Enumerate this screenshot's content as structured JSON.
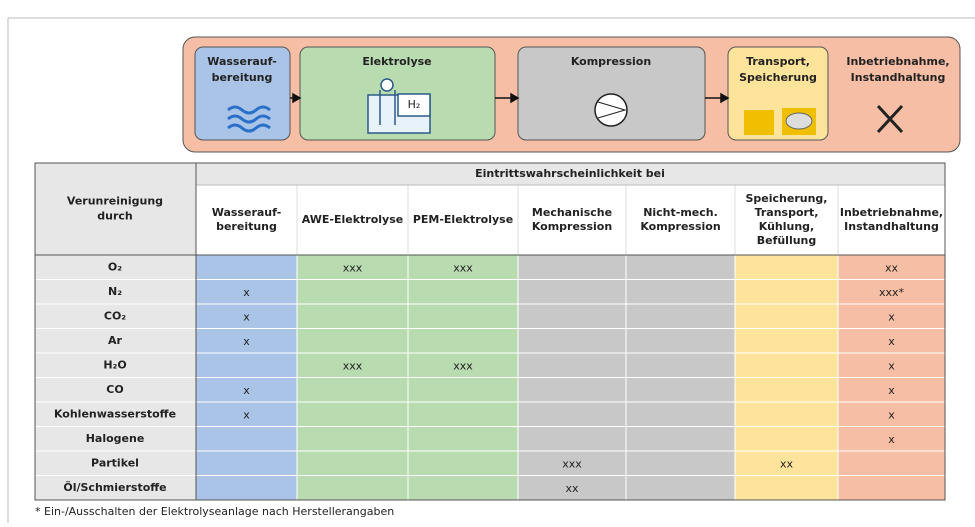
{
  "process": [
    {
      "label": [
        "Wasserauf-",
        "bereitung"
      ]
    },
    {
      "label": [
        "Elektrolyse"
      ],
      "icon_text": "H₂"
    },
    {
      "label": [
        "Kompression"
      ]
    },
    {
      "label": [
        "Transport,",
        "Speicherung"
      ]
    },
    {
      "label": [
        "Inbetriebnahme,",
        "Instandhaltung"
      ]
    }
  ],
  "table": {
    "corner": [
      "Verunreinigung",
      "durch"
    ],
    "group_header": "Eintrittswahrscheinlichkeit bei",
    "columns": [
      [
        "Wasserauf-",
        "bereitung"
      ],
      [
        "AWE-Elektrolyse"
      ],
      [
        "PEM-Elektrolyse"
      ],
      [
        "Mechanische",
        "Kompression"
      ],
      [
        "Nicht-mech.",
        "Kompression"
      ],
      [
        "Speicherung,",
        "Transport,",
        "Kühlung,",
        "Befüllung"
      ],
      [
        "Inbetriebnahme,",
        "Instandhaltung"
      ]
    ],
    "rows": [
      {
        "label": "O₂",
        "cells": [
          null,
          "xxx",
          "xxx",
          null,
          null,
          null,
          "xx"
        ]
      },
      {
        "label": "N₂",
        "cells": [
          "x",
          null,
          null,
          null,
          null,
          null,
          "xxx*"
        ]
      },
      {
        "label": "CO₂",
        "cells": [
          "x",
          null,
          null,
          null,
          null,
          null,
          "x"
        ]
      },
      {
        "label": "Ar",
        "cells": [
          "x",
          null,
          null,
          null,
          null,
          null,
          "x"
        ]
      },
      {
        "label": "H₂O",
        "cells": [
          null,
          "xxx",
          "xxx",
          null,
          null,
          null,
          "x"
        ]
      },
      {
        "label": "CO",
        "cells": [
          "x",
          null,
          null,
          null,
          null,
          null,
          "x"
        ]
      },
      {
        "label": "Kohlenwasserstoffe",
        "cells": [
          "x",
          null,
          null,
          null,
          null,
          null,
          "x"
        ]
      },
      {
        "label": "Halogene",
        "cells": [
          null,
          null,
          null,
          null,
          null,
          null,
          "x"
        ]
      },
      {
        "label": "Partikel",
        "cells": [
          null,
          null,
          null,
          "xxx",
          null,
          "xx",
          null
        ]
      },
      {
        "label": "Öl/Schmierstoffe",
        "cells": [
          null,
          null,
          null,
          "xx",
          null,
          null,
          null
        ]
      }
    ]
  },
  "footnote": "* Ein-/Ausschalten der Elektrolyseanlage nach Herstellerangaben"
}
